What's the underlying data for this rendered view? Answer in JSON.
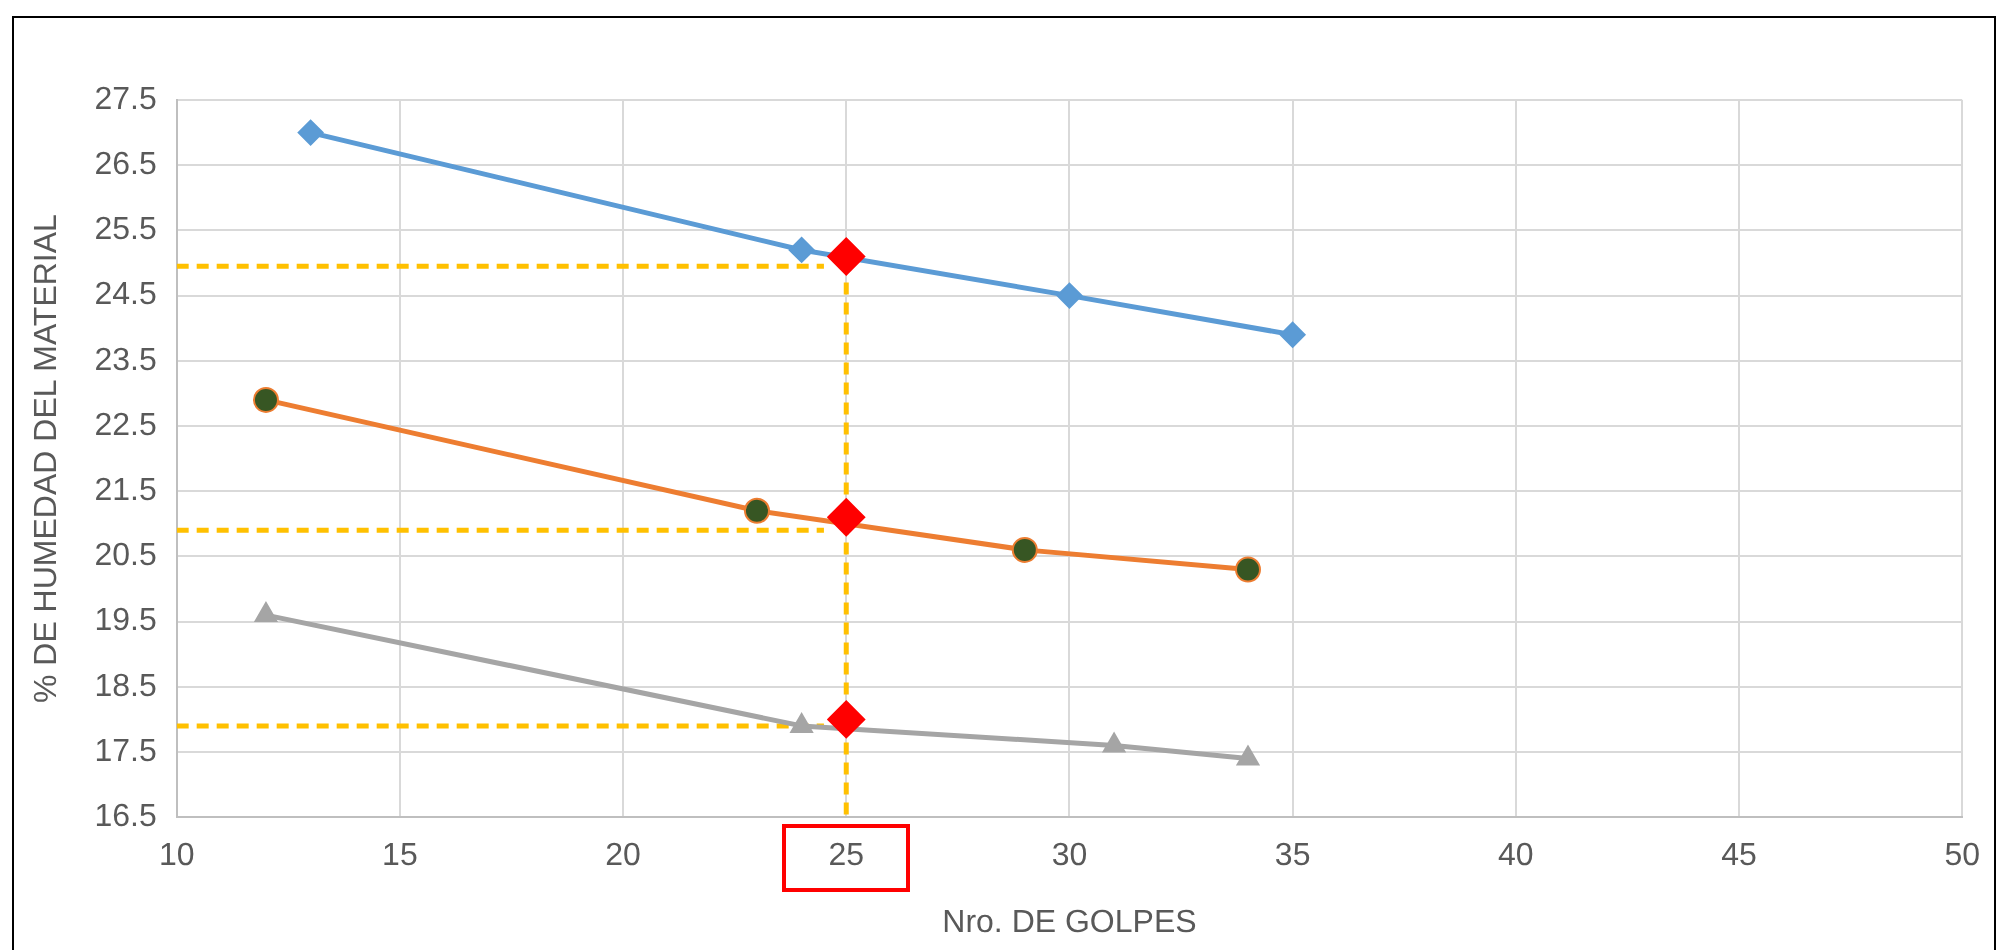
{
  "chart_data": {
    "type": "line",
    "xlabel": "Nro. DE GOLPES",
    "ylabel": "% DE HUMEDAD DEL MATERIAL",
    "xlim": [
      10,
      50
    ],
    "xticks": [
      10,
      15,
      20,
      25,
      30,
      35,
      40,
      45,
      50
    ],
    "ylim": [
      16.5,
      27.5
    ],
    "yticks": [
      16.5,
      17.5,
      18.5,
      19.5,
      20.5,
      21.5,
      22.5,
      23.5,
      24.5,
      25.5,
      26.5,
      27.5
    ],
    "grid": true,
    "legend": false,
    "line_style": "solid",
    "series": [
      {
        "color": "#5b9bd5",
        "marker": "diamond",
        "x": [
          13,
          24,
          30,
          35
        ],
        "values": [
          27.0,
          25.2,
          24.5,
          23.9
        ]
      },
      {
        "color": "#ed7d31",
        "marker": "circle",
        "colors": [
          "#375623",
          "#375623",
          "#375623",
          "#375623"
        ],
        "x": [
          12,
          23,
          29,
          34
        ],
        "values": [
          22.9,
          21.2,
          20.6,
          20.3
        ]
      },
      {
        "color": "#a5a5a5",
        "marker": "triangle",
        "x": [
          12,
          24,
          31,
          34
        ],
        "values": [
          19.6,
          17.9,
          17.6,
          17.4
        ]
      },
      {
        "color": "#ffc000",
        "marker": "none",
        "line_style": "dashed",
        "x": [
          10,
          24.5
        ],
        "values": [
          24.95,
          24.95
        ]
      },
      {
        "color": "#ffc000",
        "marker": "none",
        "line_style": "dashed",
        "x": [
          10,
          24.5
        ],
        "values": [
          20.9,
          20.9
        ]
      },
      {
        "color": "#ffc000",
        "marker": "none",
        "line_style": "dashed",
        "x": [
          10,
          24.5
        ],
        "values": [
          17.9,
          17.9
        ]
      },
      {
        "color": "#ffc000",
        "marker": "none",
        "line_style": "dashed",
        "x": [
          25,
          25
        ],
        "values": [
          24.7,
          16.5
        ]
      },
      {
        "type": "scatter",
        "color": "#ff0000",
        "marker": "diamond",
        "x": [
          25,
          25,
          25
        ],
        "values": [
          25.1,
          21.1,
          18.0
        ]
      }
    ]
  }
}
